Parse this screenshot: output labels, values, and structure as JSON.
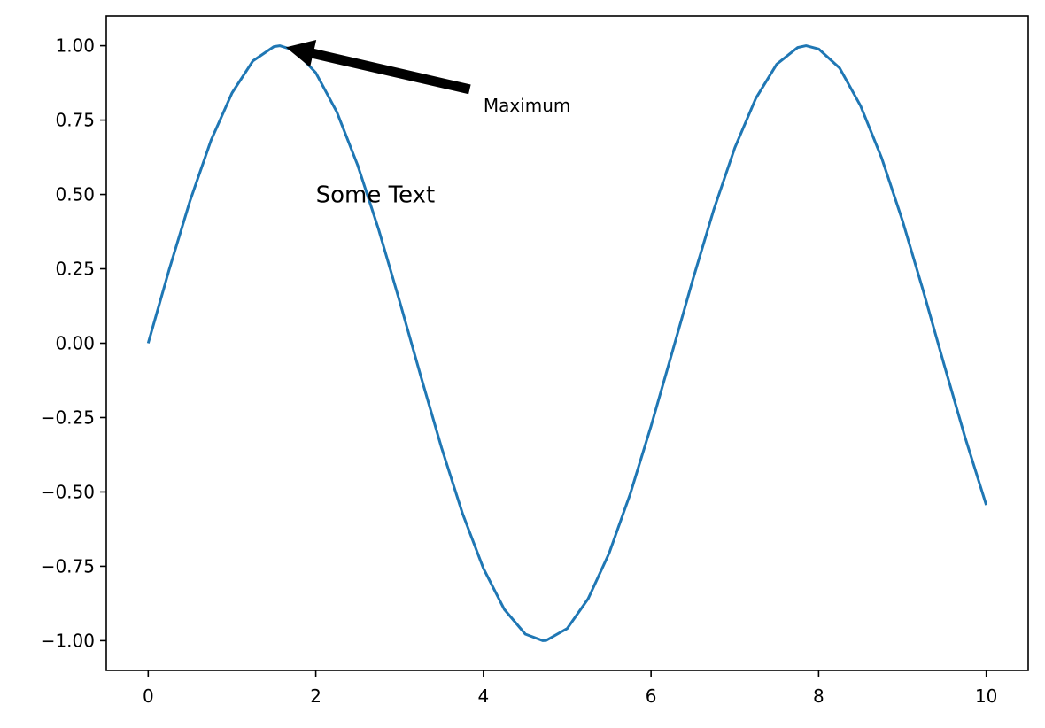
{
  "chart_data": {
    "type": "line",
    "title": "",
    "xlabel": "",
    "ylabel": "",
    "xlim": [
      -0.5,
      10.5
    ],
    "ylim": [
      -1.1,
      1.1
    ],
    "grid": false,
    "x_ticks": [
      0,
      2,
      4,
      6,
      8,
      10
    ],
    "x_tick_labels": [
      "0",
      "2",
      "4",
      "6",
      "8",
      "10"
    ],
    "y_ticks": [
      1.0,
      0.75,
      0.5,
      0.25,
      0.0,
      -0.25,
      -0.5,
      -0.75,
      -1.0
    ],
    "y_tick_labels": [
      "1.00",
      "0.75",
      "0.50",
      "0.25",
      "0.00",
      "−0.25",
      "−0.50",
      "−0.75",
      "−1.00"
    ],
    "series": [
      {
        "color": "#1f77b4",
        "x": [
          0,
          0.25,
          0.5,
          0.75,
          1.0,
          1.25,
          1.5,
          1.57,
          1.75,
          2.0,
          2.25,
          2.5,
          2.75,
          3.0,
          3.25,
          3.5,
          3.75,
          4.0,
          4.25,
          4.5,
          4.71,
          4.75,
          5.0,
          5.25,
          5.5,
          5.75,
          6.0,
          6.25,
          6.5,
          6.75,
          7.0,
          7.25,
          7.5,
          7.75,
          7.85,
          8.0,
          8.25,
          8.5,
          8.75,
          9.0,
          9.25,
          9.5,
          9.75,
          10.0
        ],
        "y": [
          0.0,
          0.247,
          0.479,
          0.682,
          0.841,
          0.949,
          0.997,
          1.0,
          0.984,
          0.909,
          0.778,
          0.598,
          0.382,
          0.141,
          -0.108,
          -0.351,
          -0.572,
          -0.757,
          -0.895,
          -0.978,
          -1.0,
          -0.999,
          -0.959,
          -0.859,
          -0.706,
          -0.508,
          -0.279,
          -0.033,
          0.215,
          0.45,
          0.657,
          0.823,
          0.938,
          0.994,
          1.0,
          0.989,
          0.925,
          0.798,
          0.624,
          0.412,
          0.174,
          -0.075,
          -0.319,
          -0.544
        ]
      }
    ],
    "annotations": [
      {
        "text": "Maximum",
        "x": 4.0,
        "y": 0.8,
        "arrow_to": [
          1.57,
          1.0
        ],
        "arrow_color": "#000000"
      },
      {
        "text": "Some Text",
        "x": 2.0,
        "y": 0.5
      }
    ]
  }
}
